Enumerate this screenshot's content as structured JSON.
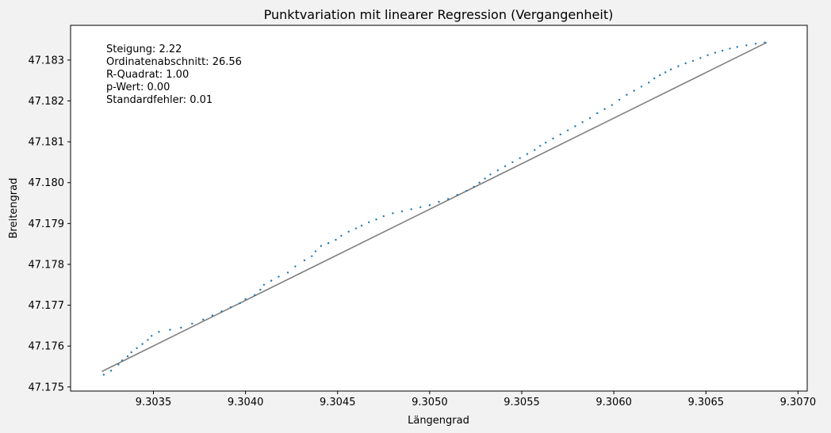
{
  "chart_data": {
    "type": "scatter",
    "title": "Punktvariation mit linearer Regression (Vergangenheit)",
    "xlabel": "Längengrad",
    "ylabel": "Breitengrad",
    "xlim": [
      9.30305,
      9.30705
    ],
    "ylim": [
      47.1749,
      47.18385
    ],
    "x_ticks": [
      9.3035,
      9.304,
      9.3045,
      9.305,
      9.3055,
      9.306,
      9.3065,
      9.307
    ],
    "x_tick_labels": [
      "9.3035",
      "9.3040",
      "9.3045",
      "9.3050",
      "9.3055",
      "9.3060",
      "9.3065",
      "9.3070"
    ],
    "y_ticks": [
      47.175,
      47.176,
      47.177,
      47.178,
      47.179,
      47.18,
      47.181,
      47.182,
      47.183
    ],
    "y_tick_labels": [
      "47.175",
      "47.176",
      "47.177",
      "47.178",
      "47.179",
      "47.180",
      "47.181",
      "47.182",
      "47.183"
    ],
    "grid": false,
    "stats_text": [
      "Steigung: 2.22",
      "Ordinatenabschnitt: 26.56",
      "R-Quadrat: 1.00",
      "p-Wert: 0.00",
      "Standardfehler: 0.01"
    ],
    "points": {
      "color": "#1f77b4",
      "x": [
        9.30323,
        9.30327,
        9.30331,
        9.30333,
        9.30336,
        9.30338,
        9.30341,
        9.30344,
        9.30347,
        9.30349,
        9.30353,
        9.30359,
        9.30365,
        9.30371,
        9.30377,
        9.30382,
        9.30387,
        9.30392,
        9.30397,
        9.304,
        9.30405,
        9.30408,
        9.3041,
        9.30414,
        9.30418,
        9.30423,
        9.30427,
        9.30432,
        9.30436,
        9.30438,
        9.30441,
        9.30445,
        9.30449,
        9.30452,
        9.30456,
        9.3046,
        9.30463,
        9.30467,
        9.30471,
        9.30475,
        9.3048,
        9.30485,
        9.3049,
        9.30495,
        9.305,
        9.30505,
        9.3051,
        9.30515,
        9.3052,
        9.30524,
        9.30527,
        9.3053,
        9.30533,
        9.30537,
        9.30541,
        9.30545,
        9.30549,
        9.30553,
        9.30557,
        9.3056,
        9.30563,
        9.30567,
        9.30571,
        9.30575,
        9.30579,
        9.30583,
        9.30587,
        9.30591,
        9.30595,
        9.30599,
        9.30603,
        9.30607,
        9.30611,
        9.30615,
        9.30619,
        9.30622,
        9.30625,
        9.30628,
        9.30631,
        9.30635,
        9.30639,
        9.30643,
        9.30647,
        9.30651,
        9.30655,
        9.30659,
        9.30663,
        9.30667,
        9.30672,
        9.30677,
        9.30682
      ],
      "y": [
        47.1753,
        47.1754,
        47.17555,
        47.17565,
        47.17575,
        47.17585,
        47.17595,
        47.17605,
        47.17615,
        47.17625,
        47.17635,
        47.1764,
        47.17645,
        47.17655,
        47.17665,
        47.17675,
        47.17685,
        47.17695,
        47.17705,
        47.17715,
        47.17725,
        47.17738,
        47.1775,
        47.1776,
        47.1777,
        47.1778,
        47.17795,
        47.1781,
        47.1782,
        47.17832,
        47.17845,
        47.17852,
        47.1786,
        47.1787,
        47.1788,
        47.17888,
        47.17895,
        47.17903,
        47.1791,
        47.17918,
        47.17925,
        47.1793,
        47.17935,
        47.1794,
        47.17945,
        47.17953,
        47.1796,
        47.1797,
        47.1798,
        47.1799,
        47.18,
        47.1801,
        47.1802,
        47.1803,
        47.1804,
        47.1805,
        47.1806,
        47.1807,
        47.1808,
        47.1809,
        47.18098,
        47.18108,
        47.18118,
        47.18128,
        47.18138,
        47.18148,
        47.18158,
        47.1817,
        47.1818,
        47.1819,
        47.18203,
        47.18215,
        47.18225,
        47.18235,
        47.18245,
        47.18255,
        47.18263,
        47.1827,
        47.18277,
        47.18285,
        47.18292,
        47.18298,
        47.18305,
        47.18312,
        47.18318,
        47.18323,
        47.18328,
        47.18332,
        47.18336,
        47.1834,
        47.18343
      ]
    },
    "regression_line": {
      "color": "#808080",
      "x": [
        9.30322,
        9.30683
      ],
      "y": [
        47.17538,
        47.18343
      ]
    }
  }
}
